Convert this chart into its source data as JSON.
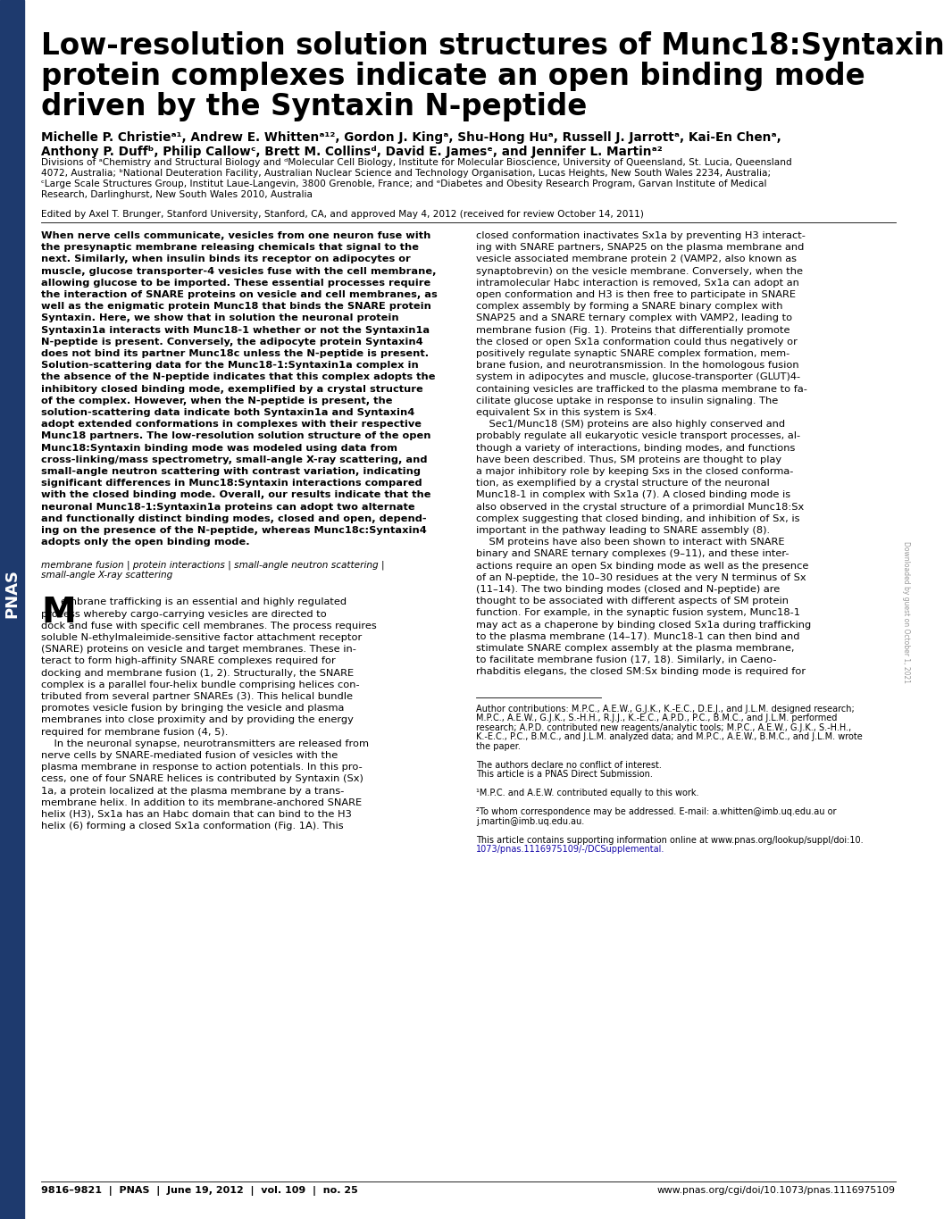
{
  "title_lines": [
    "Low-resolution solution structures of Munc18:Syntaxin",
    "protein complexes indicate an open binding mode",
    "driven by the Syntaxin N-peptide"
  ],
  "author_line1": "Michelle P. Christieᵃ¹, Andrew E. Whittenᵃ¹², Gordon J. Kingᵃ, Shu-Hong Huᵃ, Russell J. Jarrottᵃ, Kai-En Chenᵃ,",
  "author_line2": "Anthony P. Duffᵇ, Philip Callowᶜ, Brett M. Collinsᵈ, David E. Jamesᵉ, and Jennifer L. Martinᵃ²",
  "affil1": "Divisions of ᵃChemistry and Structural Biology and ᵈMolecular Cell Biology, Institute for Molecular Bioscience, University of Queensland, St. Lucia, Queensland",
  "affil2": "4072, Australia; ᵇNational Deuteration Facility, Australian Nuclear Science and Technology Organisation, Lucas Heights, New South Wales 2234, Australia;",
  "affil3": "ᶜLarge Scale Structures Group, Institut Laue-Langevin, 3800 Grenoble, France; and ᵉDiabetes and Obesity Research Program, Garvan Institute of Medical",
  "affil4": "Research, Darlinghurst, New South Wales 2010, Australia",
  "edited_by": "Edited by Axel T. Brunger, Stanford University, Stanford, CA, and approved May 4, 2012 (received for review October 14, 2011)",
  "abstract_lines": [
    "When nerve cells communicate, vesicles from one neuron fuse with",
    "the presynaptic membrane releasing chemicals that signal to the",
    "next. Similarly, when insulin binds its receptor on adipocytes or",
    "muscle, glucose transporter-4 vesicles fuse with the cell membrane,",
    "allowing glucose to be imported. These essential processes require",
    "the interaction of SNARE proteins on vesicle and cell membranes, as",
    "well as the enigmatic protein Munc18 that binds the SNARE protein",
    "Syntaxin. Here, we show that in solution the neuronal protein",
    "Syntaxin1a interacts with Munc18-1 whether or not the Syntaxin1a",
    "N-peptide is present. Conversely, the adipocyte protein Syntaxin4",
    "does not bind its partner Munc18c unless the N-peptide is present.",
    "Solution-scattering data for the Munc18-1:Syntaxin1a complex in",
    "the absence of the N-peptide indicates that this complex adopts the",
    "inhibitory closed binding mode, exemplified by a crystal structure",
    "of the complex. However, when the N-peptide is present, the",
    "solution-scattering data indicate both Syntaxin1a and Syntaxin4",
    "adopt extended conformations in complexes with their respective",
    "Munc18 partners. The low-resolution solution structure of the open",
    "Munc18:Syntaxin binding mode was modeled using data from",
    "cross-linking/mass spectrometry, small-angle X-ray scattering, and",
    "small-angle neutron scattering with contrast variation, indicating",
    "significant differences in Munc18:Syntaxin interactions compared",
    "with the closed binding mode. Overall, our results indicate that the",
    "neuronal Munc18-1:Syntaxin1a proteins can adopt two alternate",
    "and functionally distinct binding modes, closed and open, depend-",
    "ing on the presence of the N-peptide, whereas Munc18c:Syntaxin4",
    "adopts only the open binding mode."
  ],
  "keyword_lines": [
    "membrane fusion | protein interactions | small-angle neutron scattering |",
    "small-angle X-ray scattering"
  ],
  "intro_left_lines": [
    "embrane trafficking is an essential and highly regulated",
    "process whereby cargo-carrying vesicles are directed to",
    "dock and fuse with specific cell membranes. The process requires",
    "soluble N-ethylmaleimide-sensitive factor attachment receptor",
    "(SNARE) proteins on vesicle and target membranes. These in-",
    "teract to form high-affinity SNARE complexes required for",
    "docking and membrane fusion (1, 2). Structurally, the SNARE",
    "complex is a parallel four-helix bundle comprising helices con-",
    "tributed from several partner SNAREs (3). This helical bundle",
    "promotes vesicle fusion by bringing the vesicle and plasma",
    "membranes into close proximity and by providing the energy",
    "required for membrane fusion (4, 5).",
    "    In the neuronal synapse, neurotransmitters are released from",
    "nerve cells by SNARE-mediated fusion of vesicles with the",
    "plasma membrane in response to action potentials. In this pro-",
    "cess, one of four SNARE helices is contributed by Syntaxin (Sx)",
    "1a, a protein localized at the plasma membrane by a trans-",
    "membrane helix. In addition to its membrane-anchored SNARE",
    "helix (H3), Sx1a has an Habc domain that can bind to the H3",
    "helix (6) forming a closed Sx1a conformation (Fig. 1A). This"
  ],
  "intro_right_lines": [
    "closed conformation inactivates Sx1a by preventing H3 interact-",
    "ing with SNARE partners, SNAP25 on the plasma membrane and",
    "vesicle associated membrane protein 2 (VAMP2, also known as",
    "synaptobrevin) on the vesicle membrane. Conversely, when the",
    "intramolecular Habc interaction is removed, Sx1a can adopt an",
    "open conformation and H3 is then free to participate in SNARE",
    "complex assembly by forming a SNARE binary complex with",
    "SNAP25 and a SNARE ternary complex with VAMP2, leading to",
    "membrane fusion (Fig. 1). Proteins that differentially promote",
    "the closed or open Sx1a conformation could thus negatively or",
    "positively regulate synaptic SNARE complex formation, mem-",
    "brane fusion, and neurotransmission. In the homologous fusion",
    "system in adipocytes and muscle, glucose-transporter (GLUT)4-",
    "containing vesicles are trafficked to the plasma membrane to fa-",
    "cilitate glucose uptake in response to insulin signaling. The",
    "equivalent Sx in this system is Sx4.",
    "    Sec1/Munc18 (SM) proteins are also highly conserved and",
    "probably regulate all eukaryotic vesicle transport processes, al-",
    "though a variety of interactions, binding modes, and functions",
    "have been described. Thus, SM proteins are thought to play",
    "a major inhibitory role by keeping Sxs in the closed conforma-",
    "tion, as exemplified by a crystal structure of the neuronal",
    "Munc18-1 in complex with Sx1a (7). A closed binding mode is",
    "also observed in the crystal structure of a primordial Munc18:Sx",
    "complex suggesting that closed binding, and inhibition of Sx, is",
    "important in the pathway leading to SNARE assembly (8).",
    "    SM proteins have also been shown to interact with SNARE",
    "binary and SNARE ternary complexes (9–11), and these inter-",
    "actions require an open Sx binding mode as well as the presence",
    "of an N-peptide, the 10–30 residues at the very N terminus of Sx",
    "(11–14). The two binding modes (closed and N-peptide) are",
    "thought to be associated with different aspects of SM protein",
    "function. For example, in the synaptic fusion system, Munc18-1",
    "may act as a chaperone by binding closed Sx1a during trafficking",
    "to the plasma membrane (14–17). Munc18-1 can then bind and",
    "stimulate SNARE complex assembly at the plasma membrane,",
    "to facilitate membrane fusion (17, 18). Similarly, in Caeno-",
    "rhabditis elegans, the closed SM:Sx binding mode is required for"
  ],
  "footnote_sep_line": true,
  "author_contrib": "Author contributions: M.P.C., A.E.W., G.J.K., K.-E.C., D.E.J., and J.L.M. designed research;",
  "author_contrib2": "M.P.C., A.E.W., G.J.K., S.-H.H., R.J.J., K.-E.C., A.P.D., P.C., B.M.C., and J.L.M. performed",
  "author_contrib3": "research; A.P.D. contributed new reagents/analytic tools; M.P.C., A.E.W., G.J.K., S.-H.H.,",
  "author_contrib4": "K.-E.C., P.C., B.M.C., and J.L.M. analyzed data; and M.P.C., A.E.W., B.M.C., and J.L.M. wrote",
  "author_contrib5": "the paper.",
  "conflict": "The authors declare no conflict of interest.",
  "pnas_direct": "This article is a PNAS Direct Submission.",
  "fn1": "¹M.P.C. and A.E.W. contributed equally to this work.",
  "fn2a": "²To whom correspondence may be addressed. E-mail: a.whitten@imb.uq.edu.au or",
  "fn2b": "j.martin@imb.uq.edu.au.",
  "supp1": "This article contains supporting information online at www.pnas.org/lookup/suppl/doi:10.",
  "supp2": "1073/pnas.1116975109/-/DCSupplemental.",
  "footer_left": "9816–9821  |  PNAS  |  June 19, 2012  |  vol. 109  |  no. 25",
  "footer_right": "www.pnas.org/cgi/doi/10.1073/pnas.1116975109",
  "watermark": "Downloaded by guest on October 1, 2021",
  "sidebar_color": "#1e3a6e",
  "bg_color": "#ffffff",
  "link_color": "#1a0dab"
}
